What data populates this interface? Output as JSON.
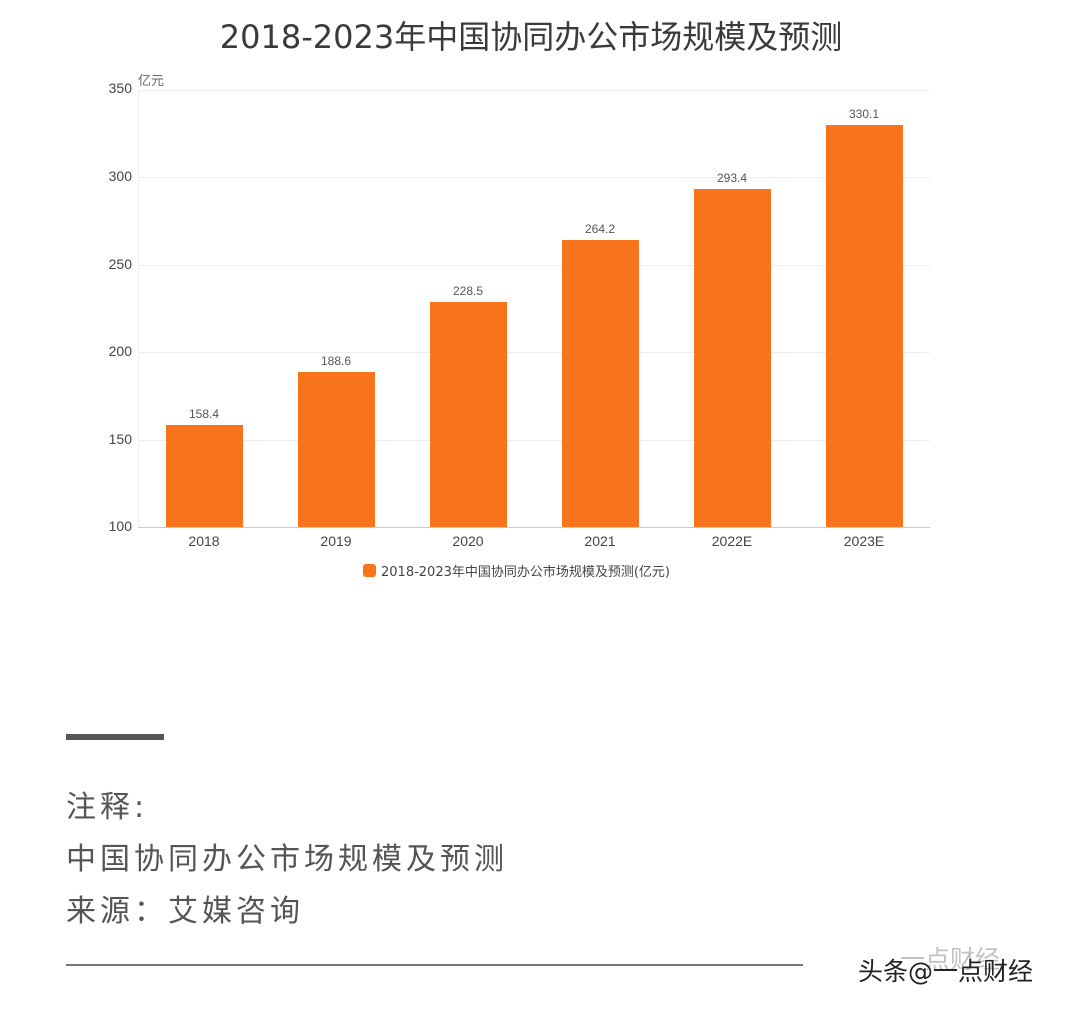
{
  "title": "2018-2023年中国协同办公市场规模及预测",
  "unit_label": "亿元",
  "chart_data": {
    "type": "bar",
    "title": "2018-2023年中国协同办公市场规模及预测",
    "categories": [
      "2018",
      "2019",
      "2020",
      "2021",
      "2022E",
      "2023E"
    ],
    "values": [
      158.4,
      188.6,
      228.5,
      264.2,
      293.4,
      330.1
    ],
    "value_labels": [
      "158.4",
      "188.6",
      "228.5",
      "264.2",
      "293.4",
      "330.1"
    ],
    "series": [
      {
        "name": "2018-2023年中国协同办公市场规模及预测(亿元)",
        "values": [
          158.4,
          188.6,
          228.5,
          264.2,
          293.4,
          330.1
        ],
        "color": "#f8741c"
      }
    ],
    "xlabel": "",
    "ylabel": "亿元",
    "ylim": [
      100,
      350
    ],
    "yticks": [
      "350",
      "300",
      "250",
      "200",
      "150",
      "100"
    ],
    "grid": true,
    "legend_position": "bottom"
  },
  "legend": {
    "label": "2018-2023年中国协同办公市场规模及预测(亿元)"
  },
  "notes": {
    "heading": "注释:",
    "line1": "中国协同办公市场规模及预测",
    "line2": "来源：艾媒咨询"
  },
  "watermark": {
    "text": "头条@一点财经",
    "ghost": "一点财经"
  }
}
